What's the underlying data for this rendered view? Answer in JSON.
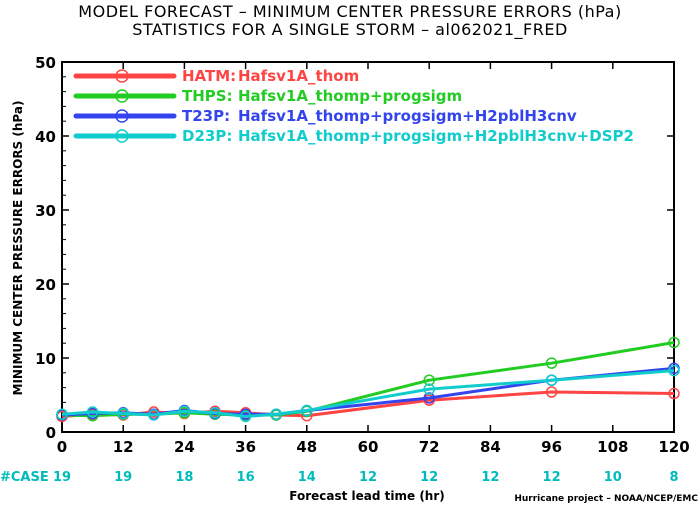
{
  "title_line1": "MODEL FORECAST – MINIMUM CENTER PRESSURE ERRORS (hPa)",
  "title_line2": "STATISTICS FOR A SINGLE STORM – al062021_FRED",
  "credit": "Hurricane project – NOAA/NCEP/EMC",
  "case_label": "#CASE",
  "case_color": "#00bbbb",
  "chart_data": {
    "type": "line",
    "xlabel": "Forecast lead time (hr)",
    "ylabel": "MINIMUM CENTER PRESSURE ERRORS (hPa)",
    "xlim": [
      0,
      120
    ],
    "ylim": [
      0,
      50
    ],
    "x_ticks": [
      "0",
      "12",
      "24",
      "36",
      "48",
      "60",
      "72",
      "84",
      "96",
      "108",
      "120"
    ],
    "y_ticks": [
      "0",
      "10",
      "20",
      "30",
      "40",
      "50"
    ],
    "cases": [
      "19",
      "19",
      "18",
      "16",
      "14",
      "12",
      "12",
      "12",
      "12",
      "10",
      "8"
    ],
    "grid": false,
    "legend_position": "top-left",
    "series": [
      {
        "name": "HATM:",
        "desc": "Hafsv1A_thom",
        "color": "#ff4444",
        "x": [
          0,
          6,
          12,
          18,
          24,
          30,
          36,
          42,
          48,
          72,
          96,
          120
        ],
        "y": [
          2.1,
          2.4,
          2.3,
          2.7,
          2.5,
          2.8,
          2.6,
          2.3,
          2.2,
          4.3,
          5.4,
          5.2
        ]
      },
      {
        "name": "THPS:",
        "desc": "Hafsv1A_thomp+progsigm",
        "color": "#22cc22",
        "x": [
          0,
          6,
          12,
          18,
          24,
          30,
          36,
          42,
          48,
          72,
          96,
          120
        ],
        "y": [
          2.3,
          2.2,
          2.4,
          2.4,
          2.6,
          2.4,
          2.3,
          2.3,
          2.8,
          7.0,
          9.3,
          12.1
        ]
      },
      {
        "name": "T23P:",
        "desc": "Hafsv1A_thomp+progsigm+H2pblH3cnv",
        "color": "#3344ee",
        "x": [
          0,
          6,
          12,
          18,
          24,
          30,
          36,
          42,
          48,
          72,
          96,
          120
        ],
        "y": [
          2.3,
          2.5,
          2.6,
          2.4,
          2.9,
          2.5,
          2.4,
          2.4,
          2.9,
          4.6,
          7.0,
          8.6
        ]
      },
      {
        "name": "D23P:",
        "desc": "Hafsv1A_thomp+progsigm+H2pblH3cnv+DSP2",
        "color": "#11cccc",
        "x": [
          0,
          6,
          12,
          18,
          24,
          30,
          36,
          42,
          48,
          72,
          96,
          120
        ],
        "y": [
          2.4,
          2.7,
          2.5,
          2.3,
          2.8,
          2.6,
          2.1,
          2.4,
          2.9,
          5.8,
          7.0,
          8.3
        ]
      }
    ]
  }
}
